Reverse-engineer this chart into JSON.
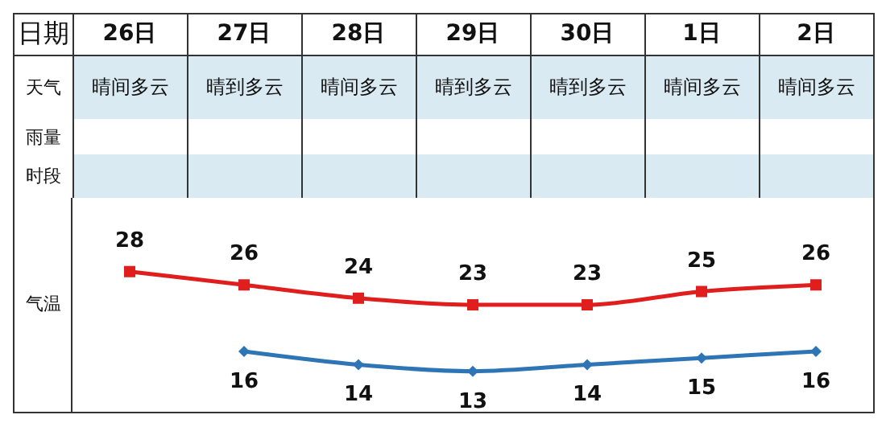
{
  "chart_data": [
    {
      "type": "other",
      "annotations": [
        "日期",
        "天气",
        "晴间多云",
        "晴到多云",
        "晴间多云",
        "晴到多云",
        "晴到多云",
        "晴间多云",
        "晴间多云",
        "雨量",
        "时段"
      ]
    },
    {
      "type": "line",
      "ylabel": "气温",
      "categories": [
        "26日",
        "27日",
        "28日",
        "29日",
        "30日",
        "1日",
        "2日"
      ],
      "data_labels": true,
      "series": [
        {
          "color": "#e01e1e",
          "marker": "square",
          "values": [
            28,
            26,
            24,
            23,
            23,
            25,
            26
          ]
        },
        {
          "color": "#2e75b6",
          "marker": "diamond",
          "values": [
            null,
            16,
            14,
            13,
            14,
            15,
            16
          ]
        }
      ]
    }
  ]
}
